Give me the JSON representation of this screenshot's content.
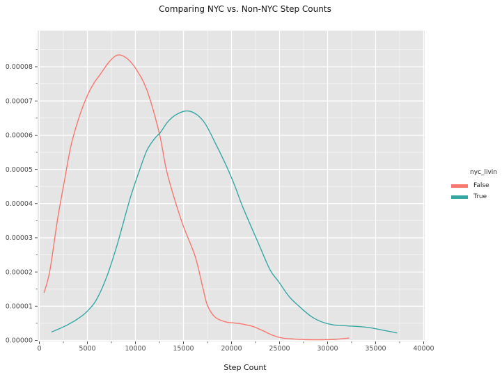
{
  "title": "Comparing NYC vs. Non-NYC Step Counts",
  "colors": {
    "panel_background": "#E5E5E5",
    "grid": "#FFFFFF",
    "tick": "#555555",
    "tick_label": "#4D4D4D",
    "text": "#141414",
    "false_series": "#F8766D",
    "true_series": "#36A8A4"
  },
  "chart_data": {
    "type": "line",
    "kind": "kde-density",
    "title": "Comparing NYC vs. Non-NYC Step Counts",
    "xlabel": "Step Count",
    "ylabel": "",
    "xlim": [
      0,
      40000
    ],
    "ylim": [
      0,
      9.05e-05
    ],
    "grid": true,
    "x_ticks": [
      0,
      5000,
      10000,
      15000,
      20000,
      25000,
      30000,
      35000,
      40000
    ],
    "x_tick_labels": [
      "0",
      "5000",
      "10000",
      "15000",
      "20000",
      "25000",
      "30000",
      "35000",
      "40000"
    ],
    "x_minor_ticks": [
      2500,
      7500,
      12500,
      17500,
      22500,
      27500,
      32500,
      37500
    ],
    "y_ticks": [
      0,
      1e-05,
      2e-05,
      3e-05,
      4e-05,
      5e-05,
      6e-05,
      7e-05,
      8e-05
    ],
    "y_tick_labels": [
      "0.00000",
      "0.00001",
      "0.00002",
      "0.00003",
      "0.00004",
      "0.00005",
      "0.00006",
      "0.00007",
      "0.00008"
    ],
    "y_minor_ticks": [
      5e-06,
      1.5e-05,
      2.5e-05,
      3.5e-05,
      4.5e-05,
      5.5e-05,
      6.5e-05,
      7.5e-05,
      8.5e-05
    ],
    "legend": {
      "title": "nyc_livin",
      "position": "right",
      "entries": [
        {
          "label": "False",
          "color": "#F8766D"
        },
        {
          "label": "True",
          "color": "#36A8A4"
        }
      ]
    },
    "series": [
      {
        "name": "False",
        "color": "#F8766D",
        "peak": {
          "x": 8100,
          "y": 8.34e-05
        },
        "points": [
          [
            500,
            1.4e-05
          ],
          [
            1100,
            2.05e-05
          ],
          [
            1900,
            3.55e-05
          ],
          [
            2600,
            4.65e-05
          ],
          [
            3300,
            5.7e-05
          ],
          [
            4200,
            6.58e-05
          ],
          [
            5000,
            7.16e-05
          ],
          [
            5700,
            7.53e-05
          ],
          [
            6400,
            7.8e-05
          ],
          [
            7200,
            8.12e-05
          ],
          [
            8100,
            8.34e-05
          ],
          [
            9000,
            8.27e-05
          ],
          [
            10000,
            7.96e-05
          ],
          [
            11200,
            7.31e-05
          ],
          [
            12500,
            6.04e-05
          ],
          [
            13300,
            4.9e-05
          ],
          [
            14800,
            3.49e-05
          ],
          [
            16200,
            2.47e-05
          ],
          [
            17000,
            1.56e-05
          ],
          [
            17500,
            1.02e-05
          ],
          [
            18300,
            6.8e-06
          ],
          [
            19400,
            5.4e-06
          ],
          [
            20300,
            5.1e-06
          ],
          [
            21300,
            4.7e-06
          ],
          [
            22300,
            4e-06
          ],
          [
            23300,
            2.8e-06
          ],
          [
            24300,
            1.5e-06
          ],
          [
            25300,
            7e-07
          ],
          [
            26500,
            4e-07
          ],
          [
            28000,
            2e-07
          ],
          [
            29500,
            2e-07
          ],
          [
            30800,
            3e-07
          ],
          [
            32200,
            7e-07
          ]
        ]
      },
      {
        "name": "True",
        "color": "#36A8A4",
        "peak": {
          "x": 15400,
          "y": 6.71e-05
        },
        "points": [
          [
            1300,
            2.5e-06
          ],
          [
            2400,
            3.8e-06
          ],
          [
            3300,
            5.1e-06
          ],
          [
            4000,
            6.3e-06
          ],
          [
            4900,
            8.3e-06
          ],
          [
            5900,
            1.17e-05
          ],
          [
            7000,
            1.85e-05
          ],
          [
            8000,
            2.7e-05
          ],
          [
            8700,
            3.4e-05
          ],
          [
            9500,
            4.2e-05
          ],
          [
            10400,
            4.95e-05
          ],
          [
            11200,
            5.56e-05
          ],
          [
            12000,
            5.9e-05
          ],
          [
            12600,
            6.08e-05
          ],
          [
            13400,
            6.4e-05
          ],
          [
            14300,
            6.61e-05
          ],
          [
            15400,
            6.71e-05
          ],
          [
            16400,
            6.6e-05
          ],
          [
            17300,
            6.32e-05
          ],
          [
            18400,
            5.72e-05
          ],
          [
            19500,
            5.08e-05
          ],
          [
            20400,
            4.48e-05
          ],
          [
            21200,
            3.88e-05
          ],
          [
            22800,
            2.84e-05
          ],
          [
            24000,
            2.07e-05
          ],
          [
            24900,
            1.72e-05
          ],
          [
            26000,
            1.28e-05
          ],
          [
            27100,
            9.8e-06
          ],
          [
            28300,
            7e-06
          ],
          [
            29400,
            5.4e-06
          ],
          [
            30500,
            4.6e-06
          ],
          [
            31700,
            4.3e-06
          ],
          [
            33000,
            4.1e-06
          ],
          [
            34200,
            3.8e-06
          ],
          [
            35400,
            3.2e-06
          ],
          [
            36300,
            2.7e-06
          ],
          [
            37200,
            2.2e-06
          ]
        ]
      }
    ]
  }
}
